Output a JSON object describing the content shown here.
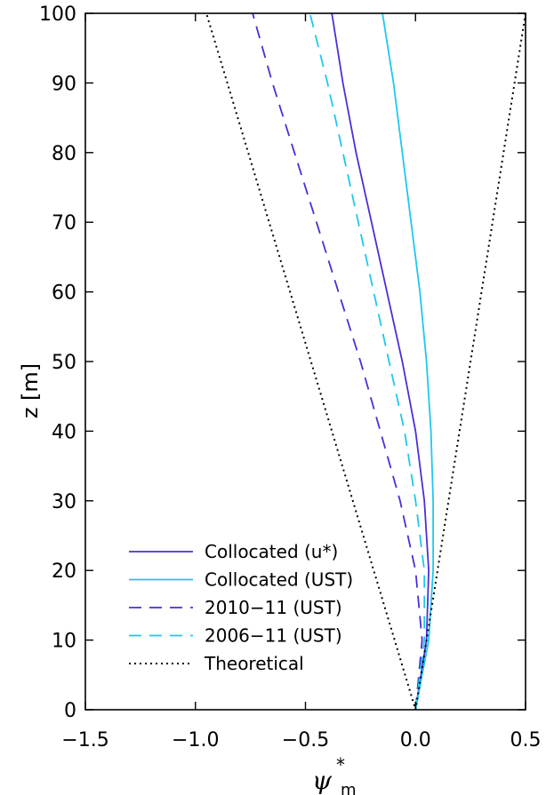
{
  "chart_data": {
    "type": "line",
    "xlabel": "ψ",
    "xlabel_superscript": "*",
    "xlabel_subscript": "m",
    "ylabel": "z [m]",
    "xlim": [
      -1.5,
      0.5
    ],
    "ylim": [
      0,
      100
    ],
    "xticks": [
      -1.5,
      -1.0,
      -0.5,
      0.0,
      0.5
    ],
    "xtick_labels": [
      "−1.5",
      "−1.0",
      "−0.5",
      "0.0",
      "0.5"
    ],
    "yticks": [
      0,
      10,
      20,
      30,
      40,
      50,
      60,
      70,
      80,
      90,
      100
    ],
    "ytick_labels": [
      "0",
      "10",
      "20",
      "30",
      "40",
      "50",
      "60",
      "70",
      "80",
      "90",
      "100"
    ],
    "legend_position": "bottom-left",
    "grid": false,
    "series": [
      {
        "name": "Collocated (u*)",
        "color": "#4b2fd6",
        "dash": "solid",
        "x": [
          0.0,
          0.05,
          0.06,
          0.04,
          0.0,
          -0.06,
          -0.13,
          -0.2,
          -0.27,
          -0.33,
          -0.38
        ],
        "y": [
          0,
          10,
          20,
          30,
          40,
          50,
          60,
          70,
          80,
          90,
          100
        ]
      },
      {
        "name": "Collocated (UST)",
        "color": "#1ec8ee",
        "dash": "solid",
        "x": [
          0.0,
          0.06,
          0.08,
          0.08,
          0.07,
          0.05,
          0.02,
          -0.02,
          -0.06,
          -0.1,
          -0.15
        ],
        "y": [
          0,
          10,
          20,
          30,
          40,
          50,
          60,
          70,
          80,
          90,
          100
        ]
      },
      {
        "name": "2010−11 (UST)",
        "color": "#4b2fd6",
        "dash": "dashed",
        "x": [
          0.0,
          0.03,
          0.0,
          -0.07,
          -0.16,
          -0.25,
          -0.35,
          -0.45,
          -0.55,
          -0.65,
          -0.74
        ],
        "y": [
          0,
          10,
          20,
          30,
          40,
          50,
          60,
          70,
          80,
          90,
          100
        ]
      },
      {
        "name": "2006−11 (UST)",
        "color": "#1ec8ee",
        "dash": "dashed",
        "x": [
          0.0,
          0.04,
          0.04,
          0.0,
          -0.05,
          -0.12,
          -0.19,
          -0.26,
          -0.33,
          -0.4,
          -0.48
        ],
        "y": [
          0,
          10,
          20,
          30,
          40,
          50,
          60,
          70,
          80,
          90,
          100
        ]
      },
      {
        "name": "Theoretical",
        "color": "#000000",
        "dash": "dotted",
        "x": [
          0.5,
          0.0,
          -0.95
        ],
        "y": [
          100,
          0,
          100
        ]
      }
    ]
  }
}
